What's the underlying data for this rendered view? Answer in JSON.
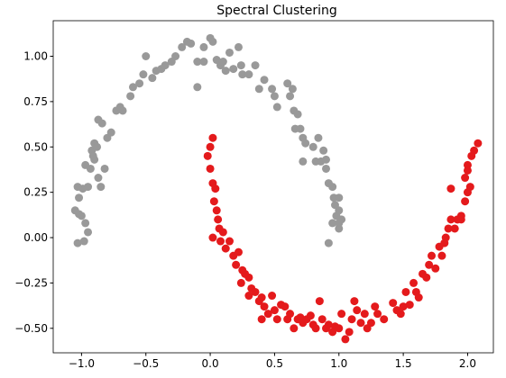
{
  "chart_data": {
    "type": "scatter",
    "title": "Spectral Clustering",
    "xlim": [
      -1.22,
      2.2
    ],
    "ylim": [
      -0.635,
      1.196
    ],
    "xticks": [
      {
        "value": -1,
        "label": "−1.0"
      },
      {
        "value": -0.5,
        "label": "−0.5"
      },
      {
        "value": 0,
        "label": "0.0"
      },
      {
        "value": 0.5,
        "label": "0.5"
      },
      {
        "value": 1,
        "label": "1.0"
      },
      {
        "value": 1.5,
        "label": "1.5"
      },
      {
        "value": 2,
        "label": "2.0"
      }
    ],
    "yticks": [
      {
        "value": -0.5,
        "label": "−0.50"
      },
      {
        "value": -0.25,
        "label": "−0.25"
      },
      {
        "value": 0,
        "label": "0.00"
      },
      {
        "value": 0.25,
        "label": "0.25"
      },
      {
        "value": 0.5,
        "label": "0.50"
      },
      {
        "value": 0.75,
        "label": "0.75"
      },
      {
        "value": 1,
        "label": "1.00"
      }
    ],
    "grid": false,
    "series": [
      {
        "color": "#999999",
        "x": [
          -1.02,
          -1.05,
          -1.0,
          -1.03,
          -0.98,
          -0.95,
          -0.97,
          -1.02,
          -0.99,
          -1.03,
          -0.95,
          -0.93,
          -0.97,
          -0.9,
          -0.92,
          -0.9,
          -0.88,
          -0.91,
          -0.85,
          -0.87,
          -0.82,
          -0.8,
          -0.87,
          -0.84,
          -0.77,
          -0.73,
          -0.7,
          -0.68,
          -0.62,
          -0.6,
          -0.55,
          -0.52,
          -0.5,
          -0.45,
          -0.42,
          -0.38,
          -0.35,
          -0.3,
          -0.27,
          -0.22,
          -0.18,
          -0.15,
          -0.1,
          -0.1,
          -0.05,
          -0.05,
          0.0,
          0.02,
          0.05,
          0.08,
          0.1,
          0.12,
          0.15,
          0.18,
          0.22,
          0.24,
          0.25,
          0.3,
          0.35,
          0.38,
          0.42,
          0.48,
          0.5,
          0.52,
          0.6,
          0.62,
          0.64,
          0.65,
          0.66,
          0.68,
          0.7,
          0.72,
          0.74,
          0.8,
          0.84,
          0.72,
          0.82,
          0.86,
          0.9,
          0.88,
          0.9,
          0.92,
          0.95,
          0.96,
          0.97,
          0.98,
          1.0,
          0.95,
          1.0,
          1.02,
          1.0,
          0.92,
          1.0
        ],
        "y": [
          0.13,
          0.15,
          0.12,
          -0.03,
          -0.02,
          0.03,
          0.08,
          0.22,
          0.27,
          0.28,
          0.28,
          0.38,
          0.4,
          0.43,
          0.48,
          0.52,
          0.5,
          0.45,
          0.28,
          0.33,
          0.38,
          0.55,
          0.65,
          0.63,
          0.58,
          0.7,
          0.72,
          0.7,
          0.78,
          0.83,
          0.85,
          0.9,
          1.0,
          0.88,
          0.92,
          0.93,
          0.95,
          0.97,
          1.0,
          1.05,
          1.08,
          1.07,
          0.97,
          0.83,
          0.97,
          1.05,
          1.1,
          1.08,
          0.98,
          0.95,
          0.97,
          0.92,
          1.02,
          0.93,
          1.05,
          0.95,
          0.9,
          0.9,
          0.95,
          0.82,
          0.87,
          0.82,
          0.78,
          0.72,
          0.85,
          0.78,
          0.82,
          0.7,
          0.6,
          0.68,
          0.6,
          0.55,
          0.52,
          0.5,
          0.55,
          0.42,
          0.42,
          0.42,
          0.38,
          0.48,
          0.43,
          0.3,
          0.28,
          0.22,
          0.18,
          0.12,
          0.08,
          0.08,
          0.05,
          0.1,
          0.15,
          -0.03,
          0.22
        ]
      },
      {
        "color": "#e41a1c",
        "x": [
          -0.02,
          0.0,
          0.02,
          0.0,
          0.02,
          0.04,
          0.03,
          0.05,
          0.06,
          0.07,
          0.02,
          0.08,
          0.1,
          0.12,
          0.15,
          0.18,
          0.2,
          0.22,
          0.25,
          0.27,
          0.24,
          0.3,
          0.32,
          0.3,
          0.35,
          0.38,
          0.4,
          0.42,
          0.4,
          0.45,
          0.48,
          0.5,
          0.52,
          0.55,
          0.58,
          0.6,
          0.62,
          0.65,
          0.68,
          0.7,
          0.72,
          0.75,
          0.78,
          0.8,
          0.82,
          0.85,
          0.87,
          0.9,
          0.92,
          0.95,
          0.97,
          1.0,
          1.02,
          1.05,
          1.08,
          1.1,
          1.12,
          1.14,
          1.17,
          1.2,
          1.22,
          1.25,
          1.28,
          1.3,
          1.35,
          1.42,
          1.45,
          1.48,
          1.5,
          1.52,
          1.55,
          1.58,
          1.6,
          1.62,
          1.65,
          1.68,
          1.7,
          1.72,
          1.75,
          1.78,
          1.8,
          1.82,
          1.83,
          1.85,
          1.87,
          1.9,
          1.92,
          1.95,
          1.98,
          2.0,
          2.02,
          1.98,
          2.0,
          2.03,
          2.05,
          2.08,
          1.87,
          2.0,
          1.95
        ],
        "y": [
          0.45,
          0.5,
          0.55,
          0.38,
          0.3,
          0.27,
          0.2,
          0.15,
          0.1,
          0.05,
          0.0,
          -0.02,
          0.03,
          -0.06,
          -0.02,
          -0.1,
          -0.15,
          -0.08,
          -0.18,
          -0.2,
          -0.25,
          -0.22,
          -0.28,
          -0.32,
          -0.3,
          -0.35,
          -0.33,
          -0.38,
          -0.45,
          -0.42,
          -0.32,
          -0.4,
          -0.45,
          -0.37,
          -0.38,
          -0.45,
          -0.42,
          -0.5,
          -0.45,
          -0.44,
          -0.47,
          -0.45,
          -0.43,
          -0.48,
          -0.5,
          -0.35,
          -0.45,
          -0.5,
          -0.48,
          -0.52,
          -0.49,
          -0.5,
          -0.42,
          -0.56,
          -0.52,
          -0.45,
          -0.35,
          -0.4,
          -0.47,
          -0.42,
          -0.5,
          -0.47,
          -0.38,
          -0.42,
          -0.45,
          -0.36,
          -0.4,
          -0.42,
          -0.38,
          -0.3,
          -0.37,
          -0.25,
          -0.3,
          -0.33,
          -0.2,
          -0.22,
          -0.15,
          -0.1,
          -0.17,
          -0.05,
          -0.1,
          -0.03,
          0.0,
          0.05,
          0.1,
          0.05,
          0.1,
          0.12,
          0.2,
          0.25,
          0.28,
          0.33,
          0.4,
          0.45,
          0.48,
          0.52,
          0.27,
          0.37,
          0.1
        ]
      }
    ]
  }
}
